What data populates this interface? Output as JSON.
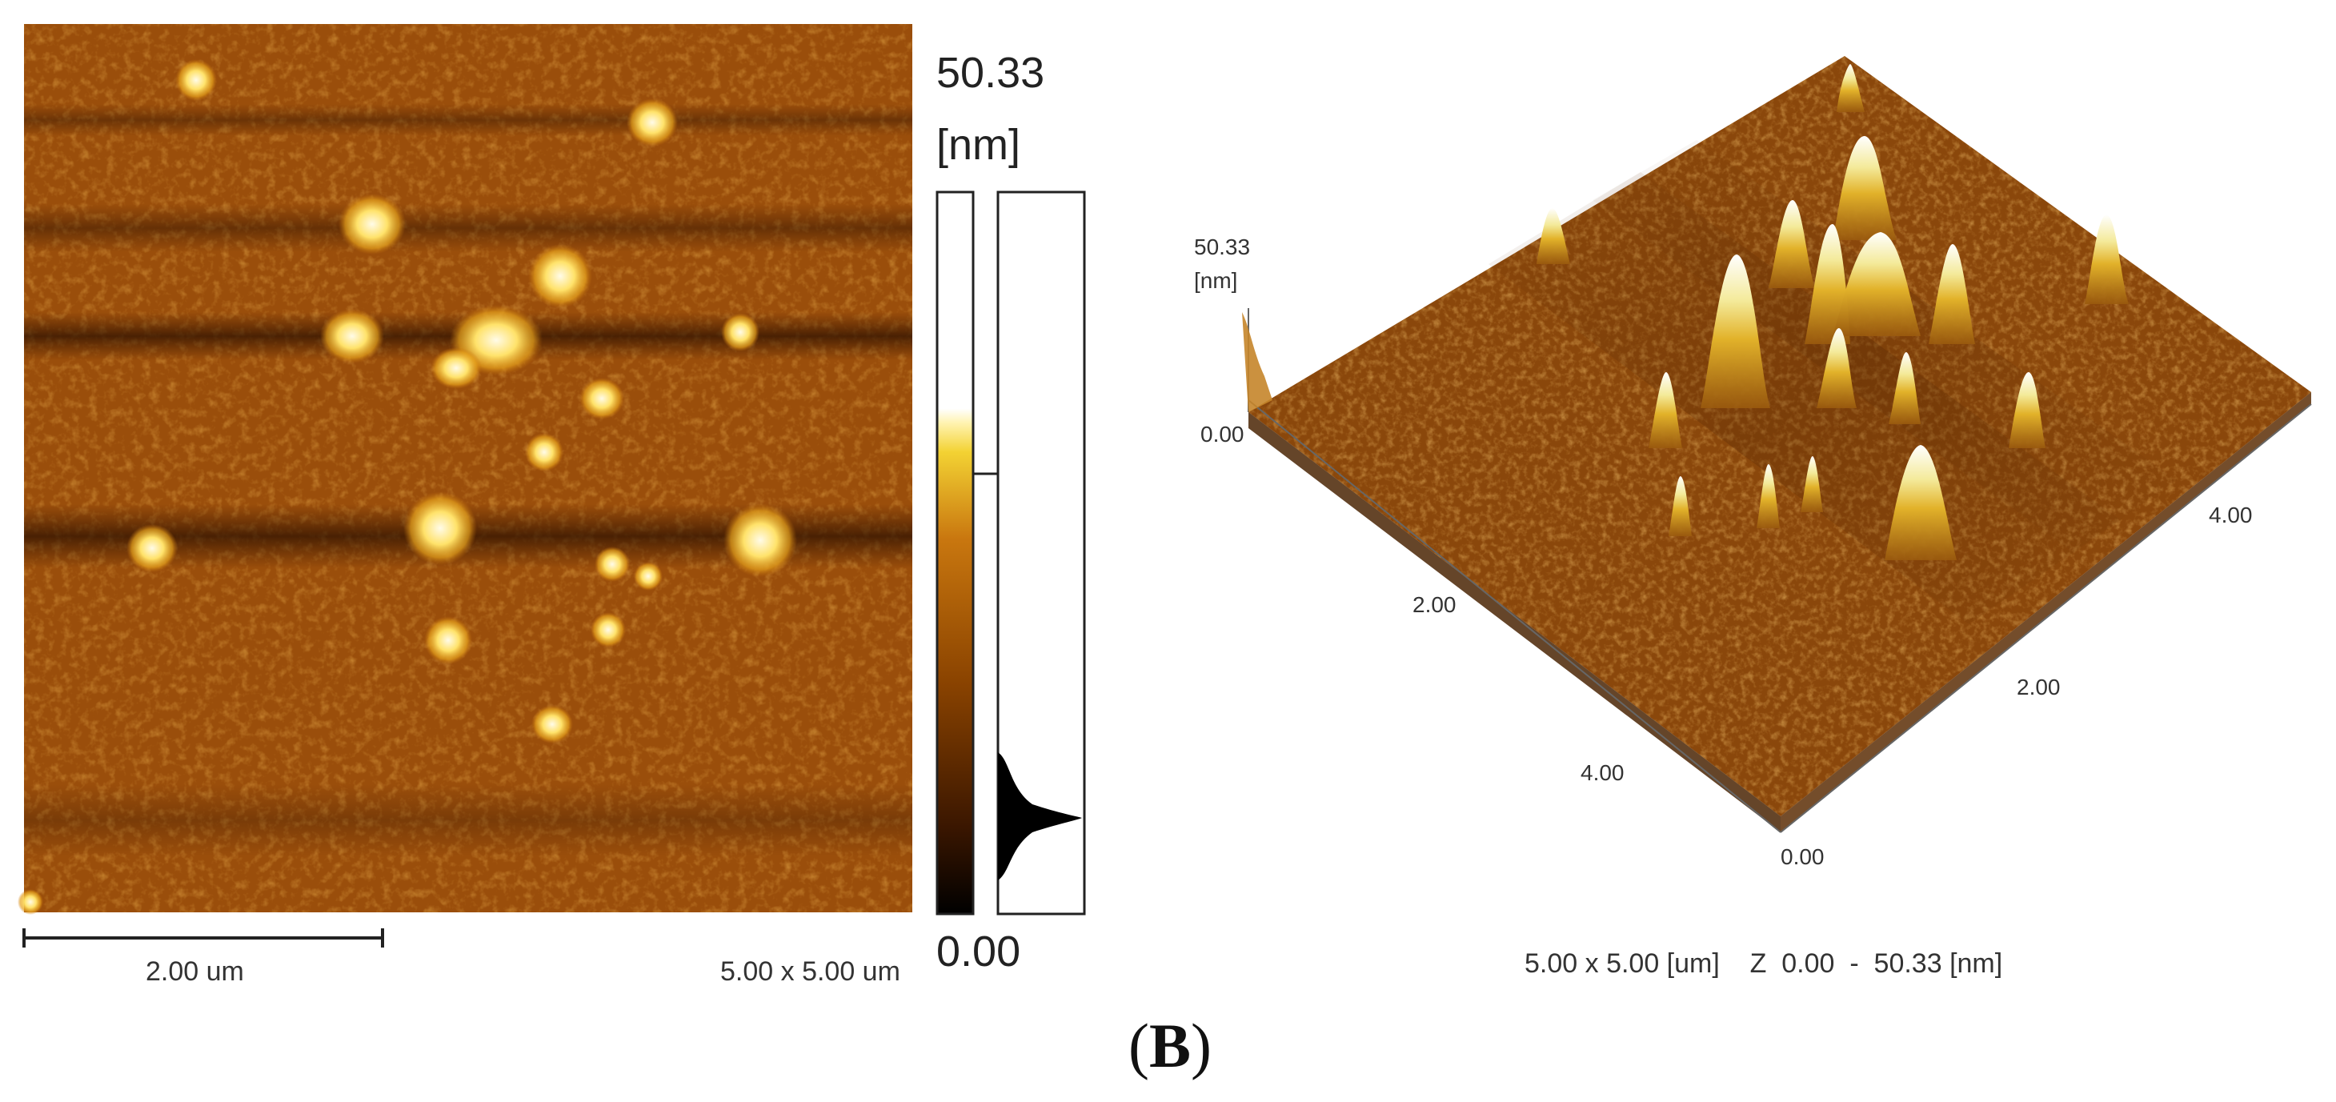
{
  "figure": {
    "panel_label": "B",
    "afm_2d": {
      "z_max_label": "50.33",
      "z_unit_label": "[nm]",
      "z_min_label": "0.00",
      "scale_bar_label": "2.00 um",
      "scan_size_label": "5.00 x 5.00 um",
      "colormap": [
        "#000000",
        "#3a1600",
        "#7a3700",
        "#b4620f",
        "#e09a1a",
        "#f2d83a",
        "#fffcf0",
        "#ffffff"
      ],
      "background_color": "#9a4e0b"
    },
    "afm_3d": {
      "z_max_label": "50.33",
      "z_unit_label": "[nm]",
      "z_min_label": "0.00",
      "x_axis_ticks": [
        "0.00",
        "2.00",
        "4.00"
      ],
      "y_axis_ticks": [
        "2.00",
        "4.00"
      ],
      "caption": "5.00 x 5.00 [um]    Z  0.00  -  50.33 [nm]",
      "surface_color": "#8a470b",
      "peak_color": "#ffffff"
    }
  }
}
